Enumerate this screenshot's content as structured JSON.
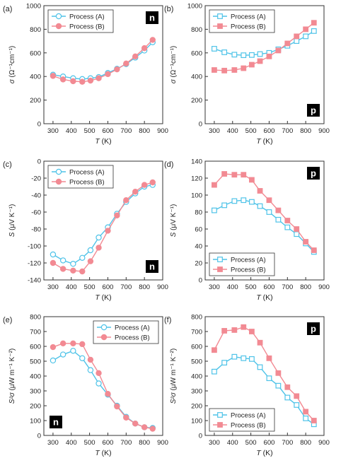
{
  "chart_data": [
    {
      "type": "line",
      "panel_label": "(a)",
      "badge": "n",
      "xlabel_var": "T",
      "xlabel_unit": "(K)",
      "ylabel_var": "σ",
      "ylabel_unit": "(Ω⁻¹cm⁻¹)",
      "xlim": [
        250,
        900
      ],
      "ylim": [
        0,
        1000
      ],
      "xticks": [
        300,
        400,
        500,
        600,
        700,
        800,
        900
      ],
      "yticks": [
        0,
        200,
        400,
        600,
        800,
        1000
      ],
      "legend": "top-left",
      "grid": false,
      "series": [
        {
          "name": "Process (A)",
          "marker": "circle-open",
          "color": "#4fc3e8",
          "x": [
            300,
            355,
            410,
            460,
            505,
            550,
            600,
            650,
            700,
            750,
            800,
            845
          ],
          "y": [
            415,
            400,
            385,
            378,
            385,
            395,
            430,
            465,
            505,
            560,
            620,
            690
          ]
        },
        {
          "name": "Process (B)",
          "marker": "circle-filled",
          "color": "#f28a93",
          "x": [
            300,
            355,
            410,
            460,
            505,
            550,
            600,
            650,
            700,
            750,
            800,
            845
          ],
          "y": [
            405,
            375,
            360,
            355,
            365,
            385,
            420,
            460,
            510,
            570,
            640,
            710
          ]
        }
      ]
    },
    {
      "type": "line",
      "panel_label": "(b)",
      "badge": "p",
      "xlabel_var": "T",
      "xlabel_unit": "(K)",
      "ylabel_var": "σ",
      "ylabel_unit": "(Ω⁻¹cm⁻¹)",
      "xlim": [
        250,
        900
      ],
      "ylim": [
        0,
        1000
      ],
      "xticks": [
        300,
        400,
        500,
        600,
        700,
        800,
        900
      ],
      "yticks": [
        0,
        200,
        400,
        600,
        800,
        1000
      ],
      "legend": "top-left",
      "grid": false,
      "series": [
        {
          "name": "Process (A)",
          "marker": "square-open",
          "color": "#4fc3e8",
          "x": [
            300,
            355,
            410,
            460,
            505,
            550,
            600,
            650,
            700,
            750,
            800,
            845
          ],
          "y": [
            635,
            605,
            585,
            580,
            582,
            590,
            600,
            630,
            660,
            700,
            740,
            785
          ]
        },
        {
          "name": "Process (B)",
          "marker": "square-filled",
          "color": "#f28a93",
          "x": [
            300,
            355,
            410,
            460,
            505,
            550,
            600,
            650,
            700,
            750,
            800,
            845
          ],
          "y": [
            455,
            450,
            455,
            470,
            500,
            530,
            570,
            620,
            680,
            740,
            800,
            855
          ]
        }
      ]
    },
    {
      "type": "line",
      "panel_label": "(c)",
      "badge": "n",
      "xlabel_var": "T",
      "xlabel_unit": "(K)",
      "ylabel_var": "S",
      "ylabel_unit": "(μV K⁻¹)",
      "xlim": [
        250,
        900
      ],
      "ylim": [
        -140,
        0
      ],
      "xticks": [
        300,
        400,
        500,
        600,
        700,
        800,
        900
      ],
      "yticks": [
        -140,
        -120,
        -100,
        -80,
        -60,
        -40,
        -20,
        0
      ],
      "legend": "top-left",
      "grid": false,
      "series": [
        {
          "name": "Process (A)",
          "marker": "circle-open",
          "color": "#4fc3e8",
          "x": [
            300,
            355,
            410,
            460,
            505,
            550,
            600,
            650,
            700,
            750,
            800,
            845
          ],
          "y": [
            -110,
            -117,
            -121,
            -114,
            -105,
            -90,
            -78,
            -62,
            -48,
            -38,
            -30,
            -28
          ]
        },
        {
          "name": "Process (B)",
          "marker": "circle-filled",
          "color": "#f28a93",
          "x": [
            300,
            355,
            410,
            460,
            505,
            550,
            600,
            650,
            700,
            750,
            800,
            845
          ],
          "y": [
            -120,
            -127,
            -129,
            -130,
            -118,
            -102,
            -82,
            -64,
            -46,
            -36,
            -28,
            -25
          ]
        }
      ]
    },
    {
      "type": "line",
      "panel_label": "(d)",
      "badge": "p",
      "xlabel_var": "T",
      "xlabel_unit": "(K)",
      "ylabel_var": "S",
      "ylabel_unit": "(μV K⁻¹)",
      "xlim": [
        250,
        900
      ],
      "ylim": [
        0,
        140
      ],
      "xticks": [
        300,
        400,
        500,
        600,
        700,
        800,
        900
      ],
      "yticks": [
        0,
        20,
        40,
        60,
        80,
        100,
        120,
        140
      ],
      "legend": "bottom-left",
      "grid": false,
      "series": [
        {
          "name": "Process (A)",
          "marker": "square-open",
          "color": "#4fc3e8",
          "x": [
            300,
            355,
            410,
            460,
            505,
            550,
            600,
            650,
            700,
            750,
            800,
            845
          ],
          "y": [
            82,
            88,
            93,
            94,
            92,
            87,
            80,
            71,
            62,
            54,
            43,
            33
          ]
        },
        {
          "name": "Process (B)",
          "marker": "square-filled",
          "color": "#f28a93",
          "x": [
            300,
            355,
            410,
            460,
            505,
            550,
            600,
            650,
            700,
            750,
            800,
            845
          ],
          "y": [
            112,
            125,
            124,
            124,
            118,
            105,
            94,
            82,
            70,
            60,
            45,
            35
          ]
        }
      ]
    },
    {
      "type": "line",
      "panel_label": "(e)",
      "badge": "n",
      "xlabel_var": "T",
      "xlabel_unit": "(K)",
      "ylabel_var": "S²σ",
      "ylabel_unit": "(μW m⁻¹ K⁻²)",
      "xlim": [
        250,
        900
      ],
      "ylim": [
        0,
        800
      ],
      "xticks": [
        300,
        400,
        500,
        600,
        700,
        800,
        900
      ],
      "yticks": [
        0,
        100,
        200,
        300,
        400,
        500,
        600,
        700,
        800
      ],
      "legend": "top-right",
      "grid": false,
      "series": [
        {
          "name": "Process (A)",
          "marker": "circle-open",
          "color": "#4fc3e8",
          "x": [
            300,
            355,
            410,
            460,
            505,
            550,
            600,
            650,
            700,
            750,
            800,
            845
          ],
          "y": [
            505,
            545,
            570,
            520,
            440,
            350,
            275,
            200,
            125,
            80,
            55,
            50
          ]
        },
        {
          "name": "Process (B)",
          "marker": "circle-filled",
          "color": "#f28a93",
          "x": [
            300,
            355,
            410,
            460,
            505,
            550,
            600,
            650,
            700,
            750,
            800,
            845
          ],
          "y": [
            595,
            620,
            620,
            615,
            510,
            420,
            280,
            195,
            120,
            80,
            55,
            45
          ]
        }
      ]
    },
    {
      "type": "line",
      "panel_label": "(f)",
      "badge": "p",
      "xlabel_var": "T",
      "xlabel_unit": "(K)",
      "ylabel_var": "S²σ",
      "ylabel_unit": "(μW m⁻¹ K⁻²)",
      "xlim": [
        250,
        900
      ],
      "ylim": [
        0,
        800
      ],
      "xticks": [
        300,
        400,
        500,
        600,
        700,
        800,
        900
      ],
      "yticks": [
        0,
        100,
        200,
        300,
        400,
        500,
        600,
        700,
        800
      ],
      "legend": "bottom-left",
      "grid": false,
      "series": [
        {
          "name": "Process (A)",
          "marker": "square-open",
          "color": "#4fc3e8",
          "x": [
            300,
            355,
            410,
            460,
            505,
            550,
            600,
            650,
            700,
            750,
            800,
            845
          ],
          "y": [
            430,
            490,
            530,
            520,
            515,
            460,
            385,
            335,
            255,
            205,
            115,
            75
          ]
        },
        {
          "name": "Process (B)",
          "marker": "square-filled",
          "color": "#f28a93",
          "x": [
            300,
            355,
            410,
            460,
            505,
            550,
            600,
            650,
            700,
            750,
            800,
            845
          ],
          "y": [
            575,
            705,
            710,
            730,
            700,
            625,
            520,
            420,
            325,
            265,
            160,
            100
          ]
        }
      ]
    }
  ]
}
